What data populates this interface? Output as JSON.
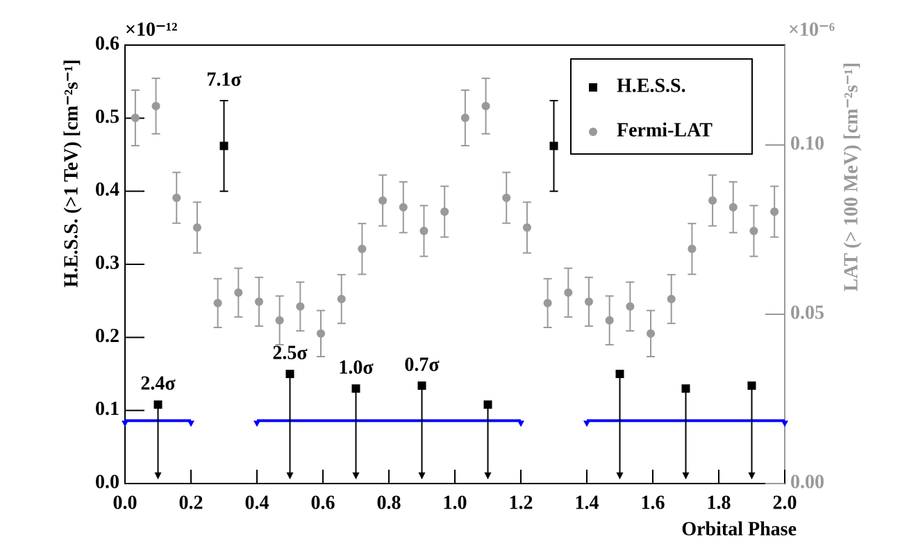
{
  "chart_data": {
    "type": "errorbar",
    "xlabel": "Orbital Phase",
    "ylabel": "H.E.S.S. (>1 TeV) [cm⁻²s⁻¹]",
    "y2label": "LAT (> 100 MeV) [cm⁻²s⁻¹]",
    "y_multiplier": "×10⁻¹²",
    "y2_multiplier": "×10⁻⁶",
    "xlim": [
      0,
      2.0
    ],
    "ylim": [
      0,
      0.6
    ],
    "y2lim": [
      0,
      0.1295
    ],
    "xticks": [
      {
        "value": 0,
        "label": "0.0"
      },
      {
        "value": 0.2,
        "label": "0.2"
      },
      {
        "value": 0.4,
        "label": "0.4"
      },
      {
        "value": 0.6,
        "label": "0.6"
      },
      {
        "value": 0.8,
        "label": "0.8"
      },
      {
        "value": 1.0,
        "label": "1.0"
      },
      {
        "value": 1.2,
        "label": "1.2"
      },
      {
        "value": 1.4,
        "label": "1.4"
      },
      {
        "value": 1.6,
        "label": "1.6"
      },
      {
        "value": 1.8,
        "label": "1.8"
      },
      {
        "value": 2.0,
        "label": "2.0"
      }
    ],
    "yticks": [
      {
        "value": 0,
        "label": "0.0"
      },
      0.1,
      0.2,
      0.3,
      0.4,
      0.5,
      0.6
    ],
    "y2ticks": [
      {
        "value": 0,
        "label": "0.00"
      },
      0.05,
      {
        "value": 0.1,
        "label": "0.10"
      }
    ],
    "legend": "upper right",
    "series": [
      {
        "name": "H.E.S.S.",
        "color": "#000000",
        "marker": "square",
        "x": [
          0.1,
          0.3,
          0.5,
          0.7,
          0.9,
          1.1,
          1.3,
          1.5,
          1.7,
          1.9
        ],
        "values": [
          0.108,
          0.462,
          0.15,
          0.13,
          0.134,
          0.108,
          0.462,
          0.15,
          0.13,
          0.134
        ],
        "errors": [
          null,
          0.062,
          null,
          null,
          null,
          null,
          0.062,
          null,
          null,
          null
        ],
        "upper_limit": [
          true,
          false,
          true,
          true,
          true,
          true,
          false,
          true,
          true,
          true
        ],
        "significance_labels": [
          "2.4σ",
          "7.1σ",
          "2.5σ",
          "1.0σ",
          "0.7σ",
          null,
          null,
          null,
          null,
          null
        ]
      },
      {
        "name": "Fermi-LAT",
        "color": "#999999",
        "marker": "circle",
        "axis": "y2",
        "x": [
          0.03125,
          0.09375,
          0.15625,
          0.21875,
          0.28125,
          0.34375,
          0.40625,
          0.46875,
          0.53125,
          0.59375,
          0.65625,
          0.71875,
          0.78125,
          0.84375,
          0.90625,
          0.96875,
          1.03125,
          1.09375,
          1.15625,
          1.21875,
          1.28125,
          1.34375,
          1.40625,
          1.46875,
          1.53125,
          1.59375,
          1.65625,
          1.71875,
          1.78125,
          1.84375,
          1.90625,
          1.96875
        ],
        "values": [
          0.108,
          0.1115,
          0.0844,
          0.0756,
          0.0533,
          0.0564,
          0.0537,
          0.0482,
          0.0523,
          0.0443,
          0.0545,
          0.0693,
          0.0836,
          0.0816,
          0.0746,
          0.0803,
          0.108,
          0.1115,
          0.0844,
          0.0756,
          0.0533,
          0.0564,
          0.0537,
          0.0482,
          0.0523,
          0.0443,
          0.0545,
          0.0693,
          0.0836,
          0.0816,
          0.0746,
          0.0803
        ],
        "errors": [
          0.0082,
          0.0082,
          0.0075,
          0.0075,
          0.0072,
          0.0072,
          0.0072,
          0.0072,
          0.0072,
          0.0068,
          0.0072,
          0.0075,
          0.0075,
          0.0075,
          0.0075,
          0.0075,
          0.0082,
          0.0082,
          0.0075,
          0.0075,
          0.0072,
          0.0072,
          0.0072,
          0.0072,
          0.0072,
          0.0068,
          0.0072,
          0.0075,
          0.0075,
          0.0075,
          0.0075,
          0.0075
        ]
      }
    ],
    "limit_lines": {
      "color": "#0000ff",
      "value": 0.086,
      "segments": [
        [
          0,
          0.2
        ],
        [
          0.4,
          1.2
        ],
        [
          1.4,
          2.0
        ]
      ]
    }
  }
}
